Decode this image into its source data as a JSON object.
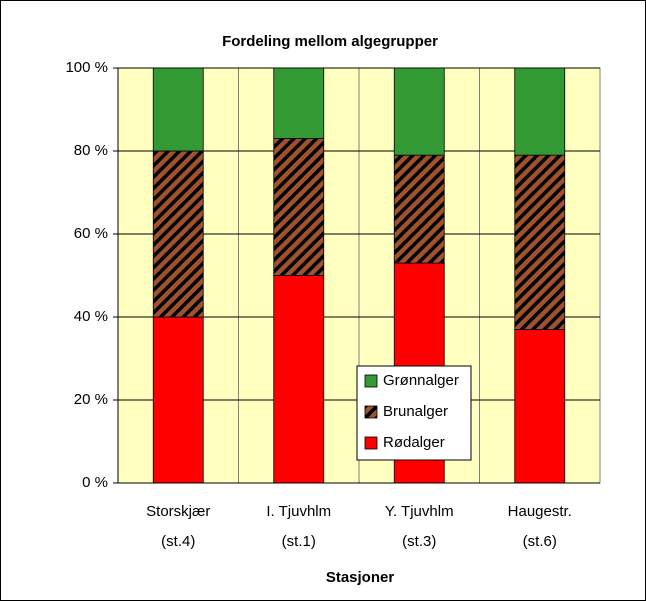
{
  "chart_data": {
    "type": "stacked-bar",
    "title": "Fordeling mellom algegrupper",
    "x_label": "Stasjoner",
    "categories": [
      [
        "Storskjær",
        "(st.4)"
      ],
      [
        "I. Tjuvhlm",
        "(st.1)"
      ],
      [
        "Y. Tjuvhlm",
        "(st.3)"
      ],
      [
        "Haugestr.",
        "(st.6)"
      ]
    ],
    "series": [
      {
        "name": "Rødalger",
        "color": "#ff0000",
        "values": [
          40,
          50,
          53,
          37
        ]
      },
      {
        "name": "Brunalger",
        "color": "#a0522d",
        "hatch": true,
        "values": [
          40,
          33,
          26,
          42
        ]
      },
      {
        "name": "Grønnalger",
        "color": "#339933",
        "values": [
          20,
          17,
          21,
          21
        ]
      }
    ],
    "ylim": [
      0,
      100
    ],
    "yticks": [
      {
        "value": 0,
        "label": "0 %"
      },
      {
        "value": 20,
        "label": "20 %"
      },
      {
        "value": 40,
        "label": "40 %"
      },
      {
        "value": 60,
        "label": "60 %"
      },
      {
        "value": 80,
        "label": "80 %"
      },
      {
        "value": 100,
        "label": "100 %"
      }
    ],
    "grid": true,
    "plot_background": "#ffffc0"
  }
}
